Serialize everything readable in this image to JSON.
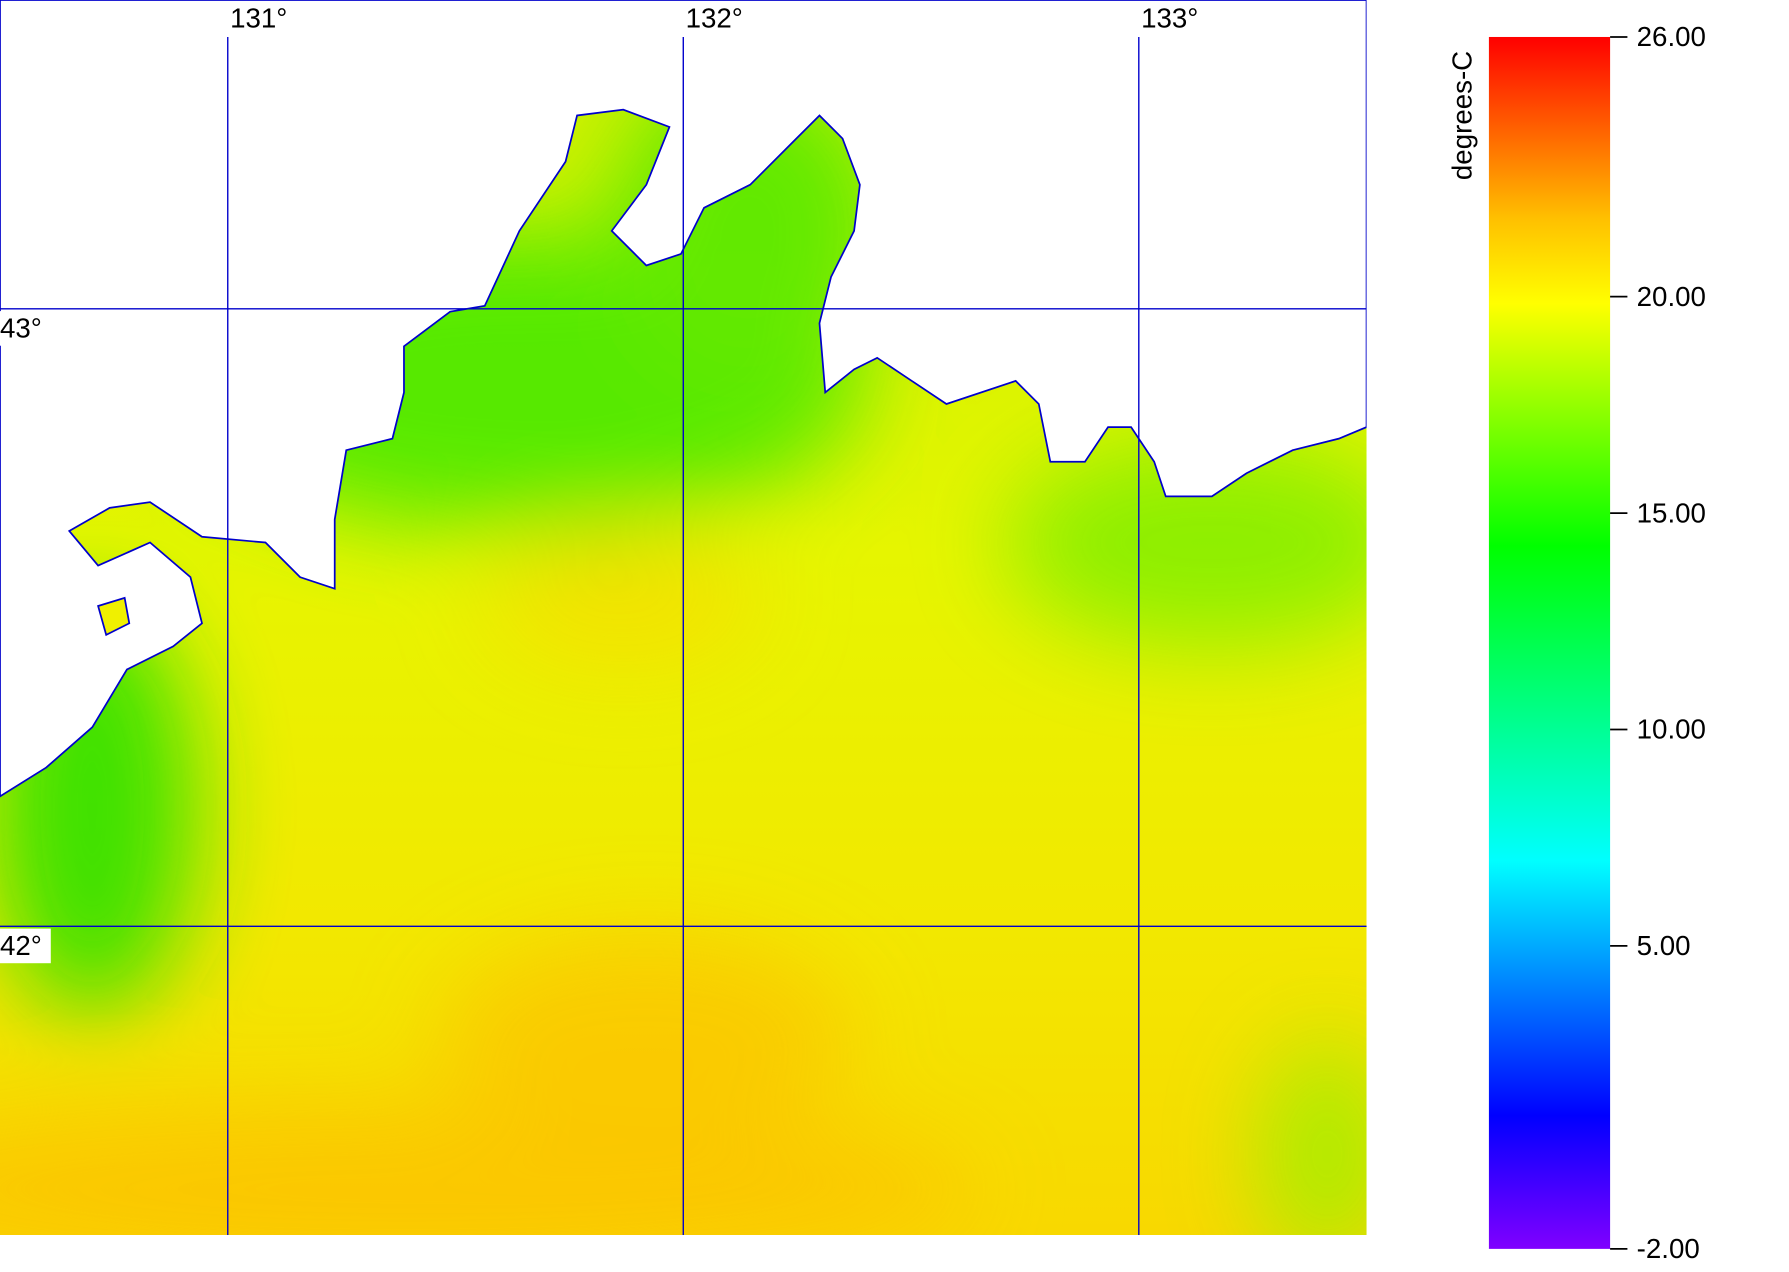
{
  "map": {
    "xlim": [
      130.5,
      133.5
    ],
    "ylim": [
      41.5,
      43.5
    ],
    "lon_ticks": [
      {
        "value": 131,
        "label": "131°"
      },
      {
        "value": 132,
        "label": "132°"
      },
      {
        "value": 133,
        "label": "133°"
      }
    ],
    "lat_ticks": [
      {
        "value": 43,
        "label": "43°"
      },
      {
        "value": 42,
        "label": "42°"
      }
    ],
    "colorbar": {
      "label": "degrees-C",
      "lim": [
        -2,
        26
      ],
      "ticks": [
        {
          "value": 26,
          "label": "26.00"
        },
        {
          "value": 20,
          "label": "20.00"
        },
        {
          "value": 15,
          "label": "15.00"
        },
        {
          "value": 10,
          "label": "10.00"
        },
        {
          "value": 5,
          "label": "5.00"
        },
        {
          "value": -2,
          "label": "-2.00"
        }
      ]
    }
  }
}
